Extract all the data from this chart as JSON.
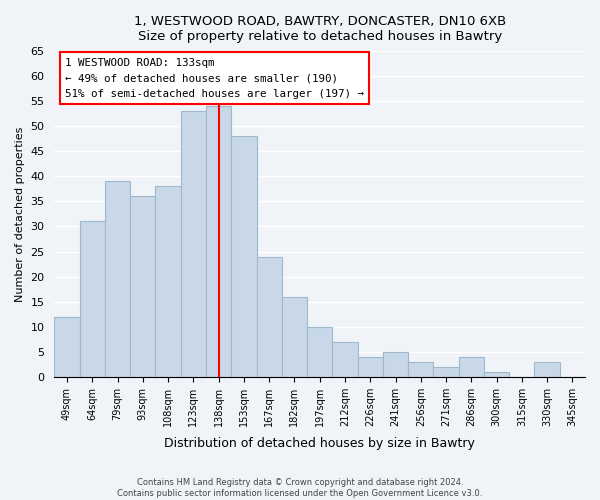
{
  "title1": "1, WESTWOOD ROAD, BAWTRY, DONCASTER, DN10 6XB",
  "title2": "Size of property relative to detached houses in Bawtry",
  "xlabel": "Distribution of detached houses by size in Bawtry",
  "ylabel": "Number of detached properties",
  "bar_labels": [
    "49sqm",
    "64sqm",
    "79sqm",
    "93sqm",
    "108sqm",
    "123sqm",
    "138sqm",
    "153sqm",
    "167sqm",
    "182sqm",
    "197sqm",
    "212sqm",
    "226sqm",
    "241sqm",
    "256sqm",
    "271sqm",
    "286sqm",
    "300sqm",
    "315sqm",
    "330sqm",
    "345sqm"
  ],
  "bar_values": [
    12,
    31,
    39,
    36,
    38,
    53,
    54,
    48,
    24,
    16,
    10,
    7,
    4,
    5,
    3,
    2,
    4,
    1,
    0,
    3,
    0
  ],
  "bar_color": "#c8d8e8",
  "bar_edge_color": "#a0b8cc",
  "vline_x": 6,
  "vline_color": "red",
  "annotation_title": "1 WESTWOOD ROAD: 133sqm",
  "annotation_line1": "← 49% of detached houses are smaller (190)",
  "annotation_line2": "51% of semi-detached houses are larger (197) →",
  "annotation_box_color": "white",
  "annotation_box_edge_color": "red",
  "ylim": [
    0,
    65
  ],
  "yticks": [
    0,
    5,
    10,
    15,
    20,
    25,
    30,
    35,
    40,
    45,
    50,
    55,
    60,
    65
  ],
  "footnote1": "Contains HM Land Registry data © Crown copyright and database right 2024.",
  "footnote2": "Contains public sector information licensed under the Open Government Licence v3.0.",
  "bg_color": "#f0f4f8"
}
